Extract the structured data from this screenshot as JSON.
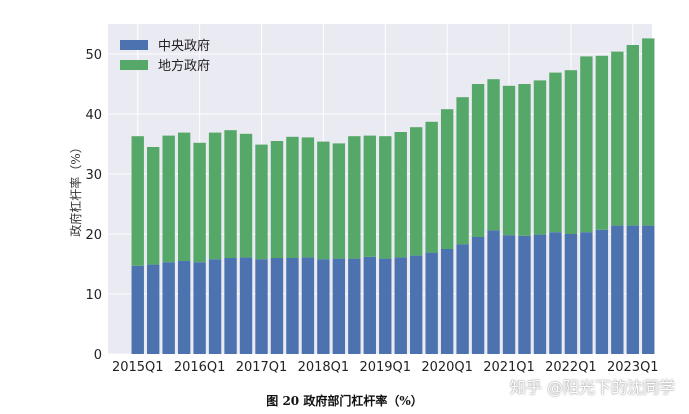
{
  "chart_data": {
    "type": "bar",
    "stacked": true,
    "ylabel": "政府杠杆率（%）",
    "ylim": [
      0,
      55
    ],
    "yticks": [
      0,
      10,
      20,
      30,
      40,
      50
    ],
    "grid": true,
    "legend": "top-left",
    "xtick_labels": [
      "2015Q1",
      "2016Q1",
      "2017Q1",
      "2018Q1",
      "2019Q1",
      "2020Q1",
      "2021Q1",
      "2022Q1",
      "2023Q1"
    ],
    "categories": [
      "2015Q1",
      "2015Q2",
      "2015Q3",
      "2015Q4",
      "2016Q1",
      "2016Q2",
      "2016Q3",
      "2016Q4",
      "2017Q1",
      "2017Q2",
      "2017Q3",
      "2017Q4",
      "2018Q1",
      "2018Q2",
      "2018Q3",
      "2018Q4",
      "2019Q1",
      "2019Q2",
      "2019Q3",
      "2019Q4",
      "2020Q1",
      "2020Q2",
      "2020Q3",
      "2020Q4",
      "2021Q1",
      "2021Q2",
      "2021Q3",
      "2021Q4",
      "2022Q1",
      "2022Q2",
      "2022Q3",
      "2022Q4",
      "2023Q1",
      "2023Q2"
    ],
    "series": [
      {
        "name": "中央政府",
        "color": "#4c72b0",
        "values": [
          14.7,
          14.9,
          15.3,
          15.5,
          15.3,
          15.8,
          16.0,
          16.1,
          15.8,
          16.0,
          16.0,
          16.1,
          15.8,
          15.9,
          15.9,
          16.2,
          15.9,
          16.1,
          16.4,
          16.9,
          17.5,
          18.3,
          19.5,
          20.6,
          19.8,
          19.7,
          19.9,
          20.3,
          20.0,
          20.3,
          20.7,
          21.4,
          21.4,
          21.4
        ]
      },
      {
        "name": "地方政府",
        "color": "#55a868",
        "values": [
          21.6,
          19.6,
          21.1,
          21.4,
          19.9,
          21.1,
          21.3,
          20.6,
          19.1,
          19.5,
          20.2,
          20.0,
          19.6,
          19.2,
          20.4,
          20.2,
          20.4,
          20.9,
          21.4,
          21.8,
          23.3,
          24.5,
          25.5,
          25.2,
          24.9,
          25.3,
          25.7,
          26.6,
          27.3,
          29.3,
          29.0,
          29.0,
          30.1,
          31.2
        ]
      }
    ]
  },
  "caption": "图 20 政府部门杠杆率（%）",
  "watermark": "知乎 @阳光下的沈同学"
}
